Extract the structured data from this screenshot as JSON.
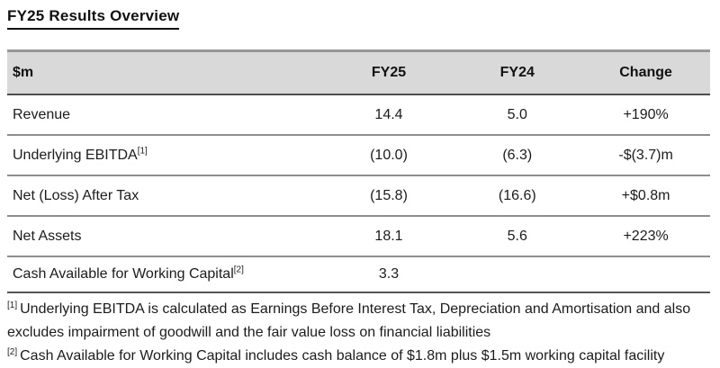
{
  "title": "FY25 Results Overview",
  "table": {
    "columns": [
      "$m",
      "FY25",
      "FY24",
      "Change"
    ],
    "rows": [
      {
        "label": "Revenue",
        "sup": "",
        "fy25": "14.4",
        "fy24": "5.0",
        "change": "+190%"
      },
      {
        "label": "Underlying EBITDA",
        "sup": "[1]",
        "fy25": "(10.0)",
        "fy24": "(6.3)",
        "change": "-$(3.7)m"
      },
      {
        "label": "Net (Loss) After Tax",
        "sup": "",
        "fy25": "(15.8)",
        "fy24": "(16.6)",
        "change": "+$0.8m"
      },
      {
        "label": "Net Assets",
        "sup": "",
        "fy25": "18.1",
        "fy24": "5.6",
        "change": "+223%"
      },
      {
        "label": "Cash Available for Working Capital",
        "sup": "[2]",
        "fy25": "3.3",
        "fy24": "",
        "change": ""
      }
    ]
  },
  "footnotes": [
    {
      "marker": "[1]",
      "text": "Underlying EBITDA is calculated as Earnings Before Interest Tax, Depreciation and Amortisation and also excludes impairment of goodwill and the fair value loss on financial liabilities"
    },
    {
      "marker": "[2]",
      "text": "Cash Available for Working Capital includes cash balance of $1.8m plus $1.5m working capital facility"
    }
  ],
  "colors": {
    "header_bg": "#d9d9d9",
    "border_top": "#979797",
    "border_dark": "#545454",
    "border_row": "#8e8e8e",
    "text": "#1c1c1c"
  }
}
